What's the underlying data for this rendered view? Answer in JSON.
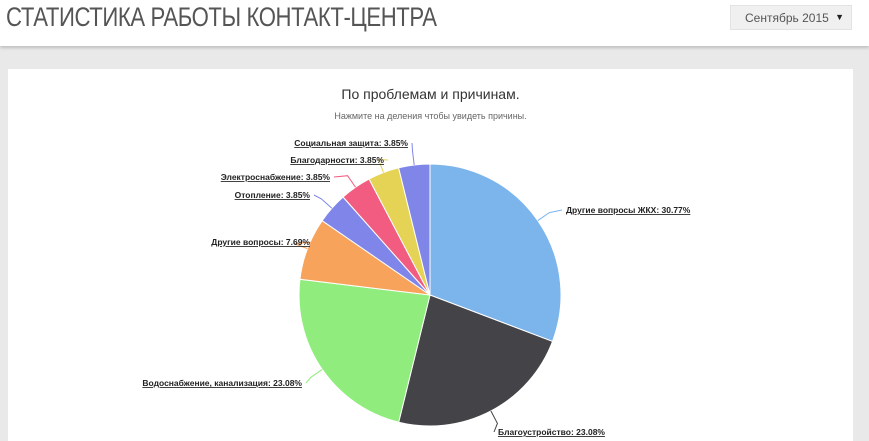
{
  "header": {
    "title": "СТАТИСТИКА РАБОТЫ КОНТАКТ-ЦЕНТРА"
  },
  "period_select": {
    "value": "Сентябрь 2015",
    "arrow_icon": "triangle-down-icon"
  },
  "chart_data": {
    "type": "pie",
    "title": "По проблемам и причинам.",
    "subtitle": "Нажмите на деления чтобы увидеть причины.",
    "slices": [
      {
        "label": "Другие вопросы ЖКХ",
        "value": 30.77,
        "display": "Другие вопросы ЖКХ: 30.77%",
        "color": "#7cb5ec"
      },
      {
        "label": "Благоустройство",
        "value": 23.08,
        "display": "Благоустройство: 23.08%",
        "color": "#434348"
      },
      {
        "label": "Водоснабжение, канализация",
        "value": 23.08,
        "display": "Водоснабжение, канализация: 23.08%",
        "color": "#90ed7d"
      },
      {
        "label": "Другие вопросы",
        "value": 7.69,
        "display": "Другие вопросы: 7.69%",
        "color": "#f7a35c"
      },
      {
        "label": "Отопление",
        "value": 3.85,
        "display": "Отопление: 3.85%",
        "color": "#8085e9"
      },
      {
        "label": "Электроснабжение",
        "value": 3.85,
        "display": "Электроснабжение: 3.85%",
        "color": "#f15c80"
      },
      {
        "label": "Благодарности",
        "value": 3.85,
        "display": "Благодарности: 3.85%",
        "color": "#e4d354"
      },
      {
        "label": "Социальная защита",
        "value": 3.85,
        "display": "Социальная защита: 3.85%",
        "color": "#8085e8"
      }
    ]
  }
}
